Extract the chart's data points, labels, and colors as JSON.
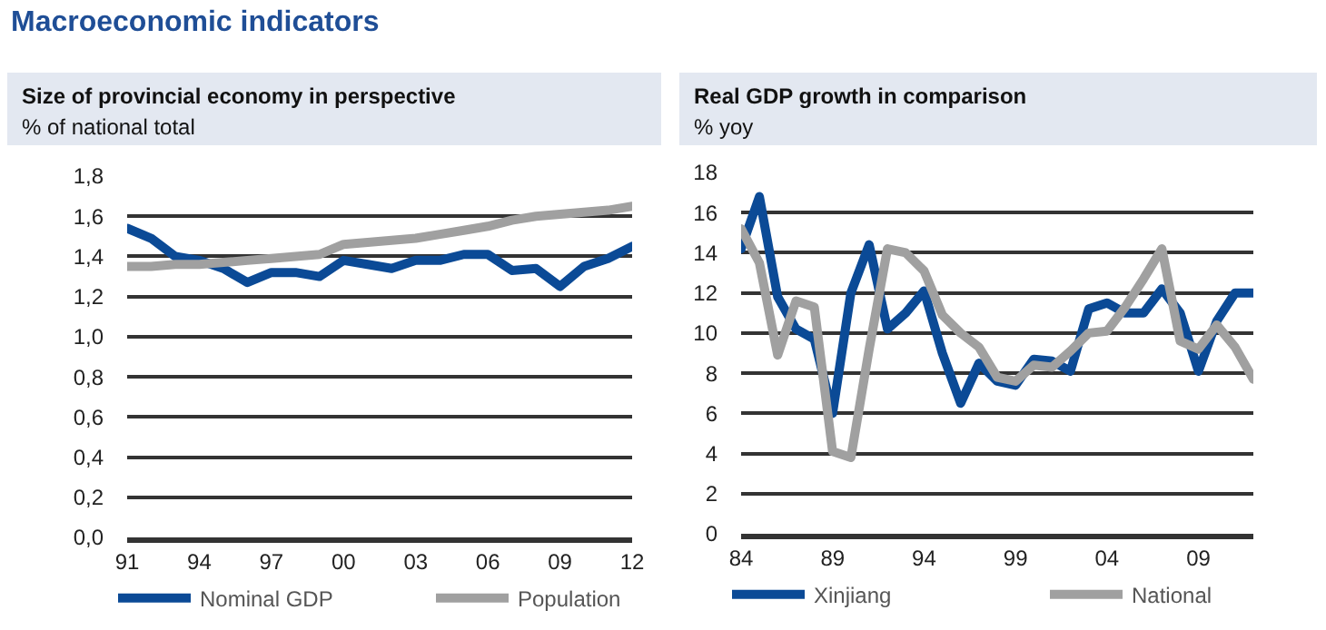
{
  "chart_data": [
    {
      "type": "line",
      "title": "Size of provincial economy in perspective",
      "subtitle": "% of national total",
      "annotations": [
        "Macroeconomic indicators"
      ],
      "x": [
        1991,
        1992,
        1993,
        1994,
        1995,
        1996,
        1997,
        1998,
        1999,
        2000,
        2001,
        2002,
        2003,
        2004,
        2005,
        2006,
        2007,
        2008,
        2009,
        2010,
        2011,
        2012
      ],
      "series": [
        {
          "name": "Nominal GDP",
          "color": "#0b4a96",
          "values": [
            1.54,
            1.49,
            1.4,
            1.38,
            1.34,
            1.27,
            1.32,
            1.32,
            1.3,
            1.38,
            1.36,
            1.34,
            1.38,
            1.38,
            1.41,
            1.41,
            1.33,
            1.34,
            1.25,
            1.35,
            1.39,
            1.45
          ]
        },
        {
          "name": "Population",
          "color": "#a0a0a0",
          "values": [
            1.35,
            1.35,
            1.36,
            1.36,
            1.37,
            1.38,
            1.39,
            1.4,
            1.41,
            1.46,
            1.47,
            1.48,
            1.49,
            1.51,
            1.53,
            1.55,
            1.58,
            1.6,
            1.61,
            1.62,
            1.63,
            1.65
          ]
        }
      ],
      "xlim": [
        1991,
        2012
      ],
      "xticks": [
        {
          "value": 1991,
          "label": "91"
        },
        {
          "value": 1994,
          "label": "94"
        },
        {
          "value": 1997,
          "label": "97"
        },
        {
          "value": 2000,
          "label": "00"
        },
        {
          "value": 2003,
          "label": "03"
        },
        {
          "value": 2006,
          "label": "06"
        },
        {
          "value": 2009,
          "label": "09"
        },
        {
          "value": 2012,
          "label": "12"
        }
      ],
      "ylim": [
        0,
        1.8
      ],
      "yticks": [
        {
          "value": 0,
          "label": "0,0"
        },
        {
          "value": 0.2,
          "label": "0,2"
        },
        {
          "value": 0.4,
          "label": "0,4"
        },
        {
          "value": 0.6,
          "label": "0,6"
        },
        {
          "value": 0.8,
          "label": "0,8"
        },
        {
          "value": 1.0,
          "label": "1,0"
        },
        {
          "value": 1.2,
          "label": "1,2"
        },
        {
          "value": 1.4,
          "label": "1,4"
        },
        {
          "value": 1.6,
          "label": "1,6"
        },
        {
          "value": 1.8,
          "label": "1,8"
        }
      ],
      "grid": "y",
      "legend": "bottom",
      "marker": "none",
      "line_style": "solid"
    },
    {
      "type": "line",
      "title": "Real GDP growth in comparison",
      "subtitle": "% yoy",
      "x": [
        1984,
        1985,
        1986,
        1987,
        1988,
        1989,
        1990,
        1991,
        1992,
        1993,
        1994,
        1995,
        1996,
        1997,
        1998,
        1999,
        2000,
        2001,
        2002,
        2003,
        2004,
        2005,
        2006,
        2007,
        2008,
        2009,
        2010,
        2011,
        2012
      ],
      "series": [
        {
          "name": "Xinjiang",
          "color": "#0b4a96",
          "values": [
            14.2,
            16.8,
            11.8,
            10.2,
            9.7,
            6.0,
            12.0,
            14.4,
            10.2,
            11.0,
            12.1,
            9.0,
            6.5,
            8.5,
            7.6,
            7.4,
            8.7,
            8.6,
            8.1,
            11.2,
            11.5,
            11.0,
            11.0,
            12.2,
            11.0,
            8.1,
            10.6,
            12.0,
            12.0
          ]
        },
        {
          "name": "National",
          "color": "#a0a0a0",
          "values": [
            15.2,
            13.5,
            8.9,
            11.6,
            11.3,
            4.1,
            3.8,
            9.2,
            14.2,
            14.0,
            13.1,
            10.9,
            10.0,
            9.3,
            7.8,
            7.6,
            8.4,
            8.3,
            9.1,
            10.0,
            10.1,
            11.3,
            12.7,
            14.2,
            9.6,
            9.2,
            10.4,
            9.3,
            7.7
          ]
        }
      ],
      "xlim": [
        1984,
        2012
      ],
      "xticks": [
        {
          "value": 1984,
          "label": "84"
        },
        {
          "value": 1989,
          "label": "89"
        },
        {
          "value": 1994,
          "label": "94"
        },
        {
          "value": 1999,
          "label": "99"
        },
        {
          "value": 2004,
          "label": "04"
        },
        {
          "value": 2009,
          "label": "09"
        }
      ],
      "ylim": [
        0,
        18
      ],
      "yticks": [
        0,
        2,
        4,
        6,
        8,
        10,
        12,
        14,
        16,
        18
      ],
      "grid": "y",
      "legend": "bottom",
      "marker": "none",
      "line_style": "solid"
    }
  ]
}
